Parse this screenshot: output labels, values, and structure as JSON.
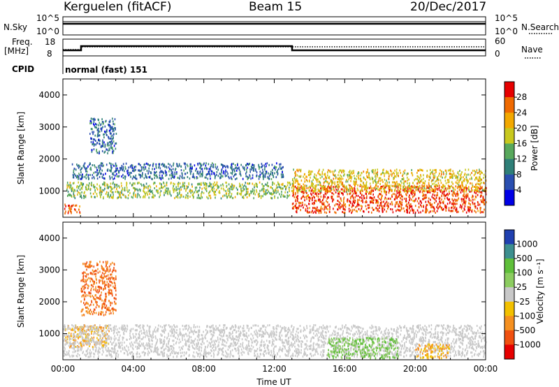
{
  "header": {
    "station": "Kerguelen (fitACF)",
    "beam": "Beam 15",
    "date": "20/Dec/2017"
  },
  "top_panels": {
    "nsky_label": "N.Sky",
    "nsky_ticks": [
      "10^5",
      "10^0"
    ],
    "nsearch_label": "N.Search",
    "nsearch_ticks": [
      "10^5",
      "10^0"
    ],
    "freq_label_1": "Freq.",
    "freq_label_2": "[MHz]",
    "freq_ticks": [
      "18",
      "8"
    ],
    "nave_label": "Nave",
    "nave_ticks": [
      "60",
      "0"
    ],
    "cpid_label": "CPID",
    "cpid_text": "normal (fast) 151"
  },
  "power_scale": {
    "label": "Power [dB]",
    "ticks": [
      "28",
      "24",
      "20",
      "16",
      "12",
      "8",
      "4"
    ],
    "colors": [
      "#0000e6",
      "#2a4fb0",
      "#2f7f78",
      "#58a85c",
      "#c8c81e",
      "#f2a800",
      "#f06a00",
      "#e60000"
    ]
  },
  "velocity_scale": {
    "label": "Velocity [m s⁻¹]",
    "ticks": [
      "1000",
      "500",
      "100",
      "25",
      "-25",
      "-100",
      "-500",
      "-1000"
    ],
    "colors": [
      "#2040b0",
      "#3d8f8f",
      "#5fbf3a",
      "#8ccc60",
      "#c8c8c8",
      "#f2c000",
      "#f59020",
      "#f05010",
      "#e60000"
    ]
  },
  "colors": {
    "background": "#ffffff",
    "frame": "#000000",
    "power_red": "#e60000",
    "power_orange": "#f06a00",
    "power_yellow": "#c8c81e",
    "power_green": "#58a85c",
    "power_blue": "#2a4fb0",
    "velocity_grey": "#c8c8c8",
    "velocity_orange": "#f59020",
    "velocity_green": "#5fbf3a"
  },
  "chart_data": [
    {
      "type": "line",
      "x": [
        "00:00",
        "01:00",
        "13:00",
        "24:00"
      ],
      "series": [
        {
          "name": "N.Sky",
          "values": [
            100000,
            100000,
            100000,
            100000
          ]
        }
      ],
      "ylim": [
        1,
        100000
      ]
    },
    {
      "type": "line",
      "x": [
        "00:00",
        "01:00",
        "13:00",
        "24:00"
      ],
      "series": [
        {
          "name": "Freq.",
          "values": [
            10,
            14,
            12,
            12
          ]
        },
        {
          "name": "Nave",
          "values": [
            35,
            45,
            45,
            45
          ]
        }
      ],
      "ylim": [
        8,
        18
      ]
    },
    {
      "type": "heatmap",
      "ylabel": "Slant Range [km]",
      "yticks": [
        "1000",
        "2000",
        "3000",
        "4000"
      ],
      "ylim": [
        180,
        4500
      ],
      "xlim": [
        0,
        24
      ],
      "cbar_label": "Power [dB]",
      "regions": [
        {
          "x": [
            0.0,
            1.0
          ],
          "y": [
            330,
            620
          ],
          "value": 28
        },
        {
          "x": [
            0.2,
            13.0
          ],
          "y": [
            800,
            1300
          ],
          "value": 16
        },
        {
          "x": [
            1.5,
            3.0
          ],
          "y": [
            2200,
            3300
          ],
          "value": 8
        },
        {
          "x": [
            0.5,
            12.5
          ],
          "y": [
            1400,
            1900
          ],
          "value": 8
        },
        {
          "x": [
            13.0,
            24.0
          ],
          "y": [
            350,
            1200
          ],
          "value": 28
        },
        {
          "x": [
            13.0,
            24.0
          ],
          "y": [
            1000,
            1700
          ],
          "value": 20
        }
      ]
    },
    {
      "type": "heatmap",
      "xlabel": "Time UT",
      "xticks": [
        "00:00",
        "04:00",
        "08:00",
        "12:00",
        "16:00",
        "20:00",
        "00:00"
      ],
      "ylabel": "Slant Range [km]",
      "yticks": [
        "1000",
        "2000",
        "3000",
        "4000"
      ],
      "ylim": [
        180,
        4500
      ],
      "xlim": [
        0,
        24
      ],
      "cbar_label": "Velocity [m s⁻¹]",
      "regions": [
        {
          "x": [
            0.1,
            2.6
          ],
          "y": [
            600,
            1300
          ],
          "value": -100
        },
        {
          "x": [
            1.0,
            3.0
          ],
          "y": [
            1600,
            3300
          ],
          "value": -500
        },
        {
          "x": [
            0.0,
            24.0
          ],
          "y": [
            300,
            1300
          ],
          "value": 0
        },
        {
          "x": [
            15.0,
            19.0
          ],
          "y": [
            250,
            900
          ],
          "value": 100
        },
        {
          "x": [
            20.0,
            22.0
          ],
          "y": [
            250,
            700
          ],
          "value": -100
        }
      ]
    }
  ]
}
